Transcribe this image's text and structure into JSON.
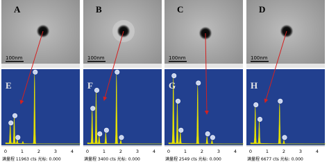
{
  "panels": [
    {
      "image_label": "A",
      "scale_bar": "100nm",
      "spectrum_label": "E",
      "footer": "满量程 11963 cts 光标: 0.000"
    },
    {
      "image_label": "B",
      "scale_bar": "100nm",
      "spectrum_label": "F",
      "footer": "满量程 3400 cts 光标: 0.000"
    },
    {
      "image_label": "C",
      "scale_bar": "100nm",
      "spectrum_label": "G",
      "footer": "满量程 2549 cts 光标: 0.000"
    },
    {
      "image_label": "D",
      "scale_bar": "100nm",
      "spectrum_label": "H",
      "footer": "满量程 6677 cts 光标: 0.000"
    }
  ],
  "x_ticks": [
    "0",
    "1",
    "2",
    "3",
    "4"
  ]
}
